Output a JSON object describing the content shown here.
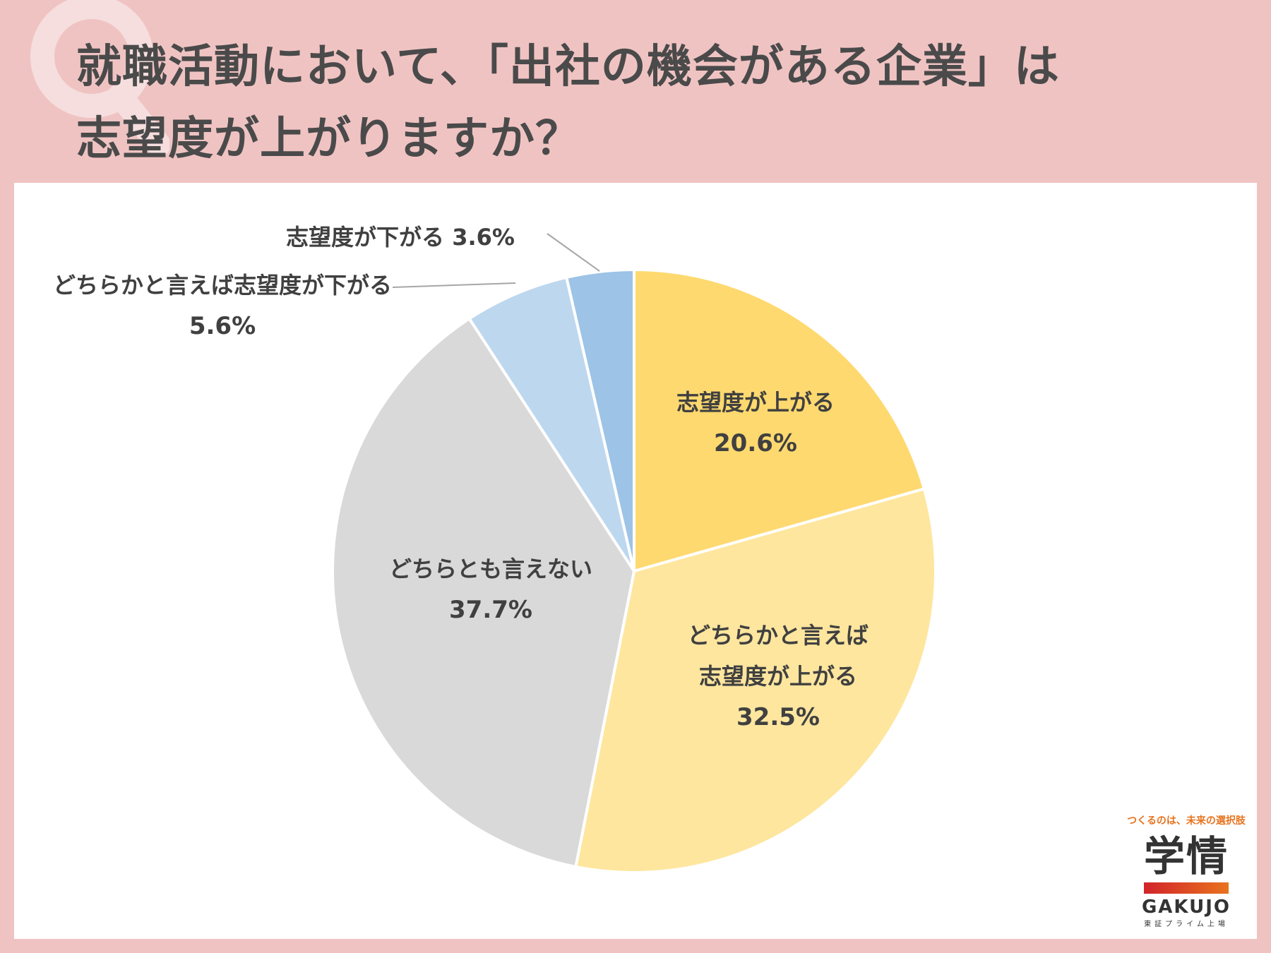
{
  "title": {
    "line1": "就職活動において、「出社の機会がある企業」は",
    "line2": "志望度が上がりますか？"
  },
  "chart_data": {
    "type": "pie",
    "start": "12 o'clock",
    "direction": "clockwise",
    "slices": [
      {
        "label_lines": [
          "志望度が上がる"
        ],
        "percent_text": "20.6%",
        "value": 20.6,
        "color": "#fed96f"
      },
      {
        "label_lines": [
          "どちらかと言えば",
          "志望度が上がる"
        ],
        "percent_text": "32.5%",
        "value": 32.5,
        "color": "#fee69e"
      },
      {
        "label_lines": [
          "どちらとも言えない"
        ],
        "percent_text": "37.7%",
        "value": 37.7,
        "color": "#d9d9d9"
      },
      {
        "label_lines": [
          "どちらかと言えば志望度が下がる"
        ],
        "percent_text": "5.6%",
        "value": 5.6,
        "color": "#bdd7ee"
      },
      {
        "label_lines": [
          "志望度が下がる 3.6%"
        ],
        "percent_text": "",
        "value": 3.6,
        "color": "#9dc3e6"
      }
    ]
  },
  "logo": {
    "tagline": "つくるのは、未来の選択肢",
    "kanji": "学情",
    "en": "GAKUJO",
    "sub": "東証プライム上場"
  }
}
